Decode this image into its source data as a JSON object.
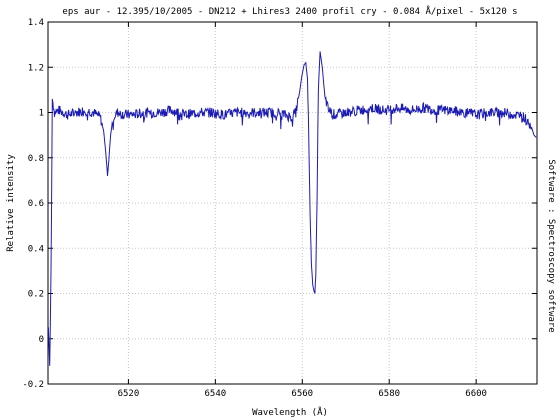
{
  "chart_data": {
    "type": "line",
    "title": "eps aur - 12.395/10/2005 - DN212 + Lhires3 2400 profil cry - 0.084 Å/pixel - 5x120 s",
    "xlabel": "Wavelength (Å)",
    "ylabel": "Relative intensity",
    "right_label": "Software : Spectroscopy software",
    "xlim": [
      6501.5,
      6614
    ],
    "ylim": [
      -0.2,
      1.4
    ],
    "x_ticks": [
      6520,
      6540,
      6560,
      6580,
      6600
    ],
    "y_ticks": [
      -0.2,
      0,
      0.2,
      0.4,
      0.6,
      0.8,
      1,
      1.2,
      1.4
    ],
    "y_tick_labels": [
      "-0.2",
      "0",
      "0.2",
      "0.4",
      "0.6",
      "0.8",
      "1",
      "1.2",
      "1.4"
    ],
    "grid": true,
    "line_color": "#1c1cb4",
    "series": [
      {
        "x": [
          6501.6,
          6501.9,
          6502.2,
          6502.5,
          6503,
          6504,
          6506,
          6508,
          6510,
          6512,
          6513.5,
          6514.3,
          6514.8,
          6515.2,
          6515.5,
          6515.9,
          6516.5,
          6517.5,
          6519,
          6521,
          6524,
          6527,
          6530,
          6533,
          6536,
          6539,
          6542,
          6545,
          6548,
          6551,
          6554,
          6556,
          6557.5,
          6558.5,
          6559.3,
          6559.9,
          6560.4,
          6560.8,
          6561.2,
          6561.5,
          6561.8,
          6562.1,
          6562.4,
          6562.7,
          6562.9,
          6563.1,
          6563.4,
          6563.7,
          6564.1,
          6564.6,
          6565.2,
          6566,
          6567.5,
          6570,
          6573,
          6576,
          6579,
          6582,
          6585,
          6588,
          6591,
          6594,
          6597,
          6600,
          6603,
          6606,
          6609,
          6611,
          6612.5,
          6613.3,
          6613.8
        ],
        "y": [
          0.05,
          -0.12,
          0.3,
          1.06,
          1.0,
          1.01,
          0.99,
          1.0,
          1.01,
          1.0,
          0.98,
          0.92,
          0.82,
          0.72,
          0.79,
          0.9,
          0.98,
          1.0,
          0.99,
          0.99,
          1.0,
          1.0,
          1.01,
          0.99,
          1.0,
          1.0,
          0.99,
          1.0,
          1.0,
          1.0,
          1.0,
          0.99,
          0.98,
          1.0,
          1.08,
          1.16,
          1.21,
          1.22,
          1.15,
          0.88,
          0.55,
          0.33,
          0.24,
          0.21,
          0.2,
          0.28,
          0.62,
          1.1,
          1.27,
          1.2,
          1.07,
          1.01,
          0.99,
          1.0,
          1.01,
          1.02,
          1.01,
          1.02,
          1.01,
          1.02,
          1.01,
          1.01,
          1.0,
          0.99,
          1.0,
          1.0,
          0.99,
          0.98,
          0.95,
          0.9,
          0.89
        ]
      }
    ]
  }
}
